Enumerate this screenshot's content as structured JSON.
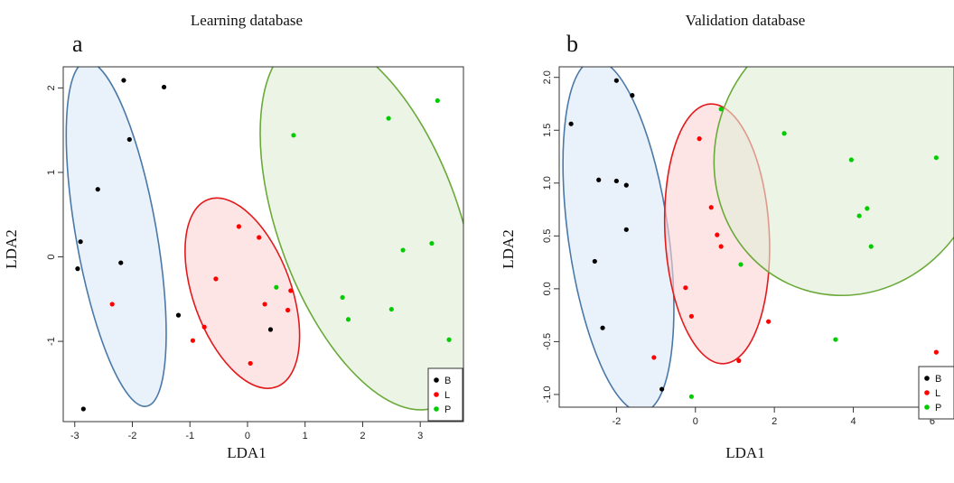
{
  "chart_data": [
    {
      "type": "scatter",
      "title": "Learning database",
      "panel": "a",
      "xlabel": "LDA1",
      "ylabel": "LDA2",
      "xlim": [
        -3.2,
        3.75
      ],
      "ylim": [
        -1.95,
        2.25
      ],
      "xticks": [
        -3,
        -2,
        -1,
        0,
        1,
        2,
        3
      ],
      "yticks": [
        -1,
        0,
        1,
        2
      ],
      "legend": [
        "B",
        "L",
        "P"
      ],
      "legend_position": "bottom-right",
      "colors": {
        "B": "#000000",
        "L": "#ff0000",
        "P": "#00cc00"
      },
      "ellipse_colors": {
        "B": {
          "stroke": "#4a79a8",
          "fill": "#dbe8f7"
        },
        "L": {
          "stroke": "#e31a1c",
          "fill": "#fcd4d4"
        },
        "P": {
          "stroke": "#6aaa3a",
          "fill": "#e0ecd5"
        }
      },
      "series": [
        {
          "name": "B",
          "points": [
            [
              -2.15,
              2.09
            ],
            [
              -1.45,
              2.01
            ],
            [
              -2.05,
              1.39
            ],
            [
              -2.6,
              0.8
            ],
            [
              -2.9,
              0.18
            ],
            [
              -2.95,
              -0.14
            ],
            [
              -2.2,
              -0.07
            ],
            [
              -1.2,
              -0.69
            ],
            [
              0.4,
              -0.86
            ],
            [
              -2.85,
              -1.8
            ]
          ]
        },
        {
          "name": "L",
          "points": [
            [
              -0.15,
              0.36
            ],
            [
              0.2,
              0.23
            ],
            [
              -0.55,
              -0.26
            ],
            [
              0.3,
              -0.56
            ],
            [
              0.75,
              -0.4
            ],
            [
              0.7,
              -0.63
            ],
            [
              -0.75,
              -0.83
            ],
            [
              -0.95,
              -0.99
            ],
            [
              0.05,
              -1.26
            ],
            [
              -2.35,
              -0.56
            ]
          ]
        },
        {
          "name": "P",
          "points": [
            [
              0.8,
              1.44
            ],
            [
              2.45,
              1.64
            ],
            [
              3.3,
              1.85
            ],
            [
              2.7,
              0.08
            ],
            [
              3.2,
              0.16
            ],
            [
              0.5,
              -0.36
            ],
            [
              1.65,
              -0.48
            ],
            [
              1.75,
              -0.74
            ],
            [
              2.5,
              -0.62
            ],
            [
              3.5,
              -0.98
            ]
          ]
        }
      ],
      "ellipses": [
        {
          "group": "B",
          "cx": -2.28,
          "cy": 0.27,
          "rx": 0.7,
          "ry": 2.07,
          "angle_deg": 10
        },
        {
          "group": "L",
          "cx": -0.09,
          "cy": -0.43,
          "rx": 0.85,
          "ry": 1.18,
          "angle_deg": 20
        },
        {
          "group": "P",
          "cx": 2.1,
          "cy": 0.4,
          "rx": 1.57,
          "ry": 2.32,
          "angle_deg": 20
        }
      ]
    },
    {
      "type": "scatter",
      "title": "Validation database",
      "panel": "b",
      "xlabel": "LDA1",
      "ylabel": "LDA2",
      "xlim": [
        -3.45,
        6.55
      ],
      "ylim": [
        -1.12,
        2.1
      ],
      "xticks": [
        -2,
        0,
        2,
        4,
        6
      ],
      "yticks": [
        -1.0,
        -0.5,
        0.0,
        0.5,
        1.0,
        1.5,
        2.0
      ],
      "ytick_labels": [
        "-1.0",
        "-0.5",
        "0.0",
        "0.5",
        "1.0",
        "1.5",
        "2.0"
      ],
      "legend": [
        "B",
        "L",
        "P"
      ],
      "legend_position": "bottom-right",
      "colors": {
        "B": "#000000",
        "L": "#ff0000",
        "P": "#00cc00"
      },
      "ellipse_colors": {
        "B": {
          "stroke": "#4a79a8",
          "fill": "#dbe8f7"
        },
        "L": {
          "stroke": "#e31a1c",
          "fill": "#fcd4d4"
        },
        "P": {
          "stroke": "#6aaa3a",
          "fill": "#e0ecd5"
        }
      },
      "series": [
        {
          "name": "B",
          "points": [
            [
              -2.0,
              1.97
            ],
            [
              -1.6,
              1.83
            ],
            [
              -3.15,
              1.56
            ],
            [
              -2.45,
              1.03
            ],
            [
              -2.0,
              1.02
            ],
            [
              -1.75,
              0.98
            ],
            [
              -1.75,
              0.56
            ],
            [
              -2.55,
              0.26
            ],
            [
              -2.35,
              -0.37
            ],
            [
              -0.85,
              -0.95
            ]
          ]
        },
        {
          "name": "L",
          "points": [
            [
              0.1,
              1.42
            ],
            [
              0.4,
              0.77
            ],
            [
              0.55,
              0.51
            ],
            [
              0.65,
              0.4
            ],
            [
              -0.25,
              0.01
            ],
            [
              -0.1,
              -0.26
            ],
            [
              1.85,
              -0.31
            ],
            [
              -1.05,
              -0.65
            ],
            [
              1.1,
              -0.68
            ],
            [
              6.1,
              -0.6
            ]
          ]
        },
        {
          "name": "P",
          "points": [
            [
              0.65,
              1.7
            ],
            [
              2.25,
              1.47
            ],
            [
              3.95,
              1.22
            ],
            [
              6.1,
              1.24
            ],
            [
              4.35,
              0.76
            ],
            [
              4.15,
              0.69
            ],
            [
              4.45,
              0.4
            ],
            [
              1.15,
              0.23
            ],
            [
              3.55,
              -0.48
            ],
            [
              -0.1,
              -1.02
            ]
          ]
        }
      ],
      "ellipses": [
        {
          "group": "B",
          "cx": -1.95,
          "cy": 0.5,
          "rx": 1.27,
          "ry": 1.68,
          "angle_deg": 8
        },
        {
          "group": "L",
          "cx": 0.55,
          "cy": 0.52,
          "rx": 1.32,
          "ry": 1.23,
          "angle_deg": 3
        },
        {
          "group": "P",
          "cx": 3.9,
          "cy": 1.28,
          "rx": 3.38,
          "ry": 1.36,
          "angle_deg": -25
        }
      ]
    }
  ]
}
